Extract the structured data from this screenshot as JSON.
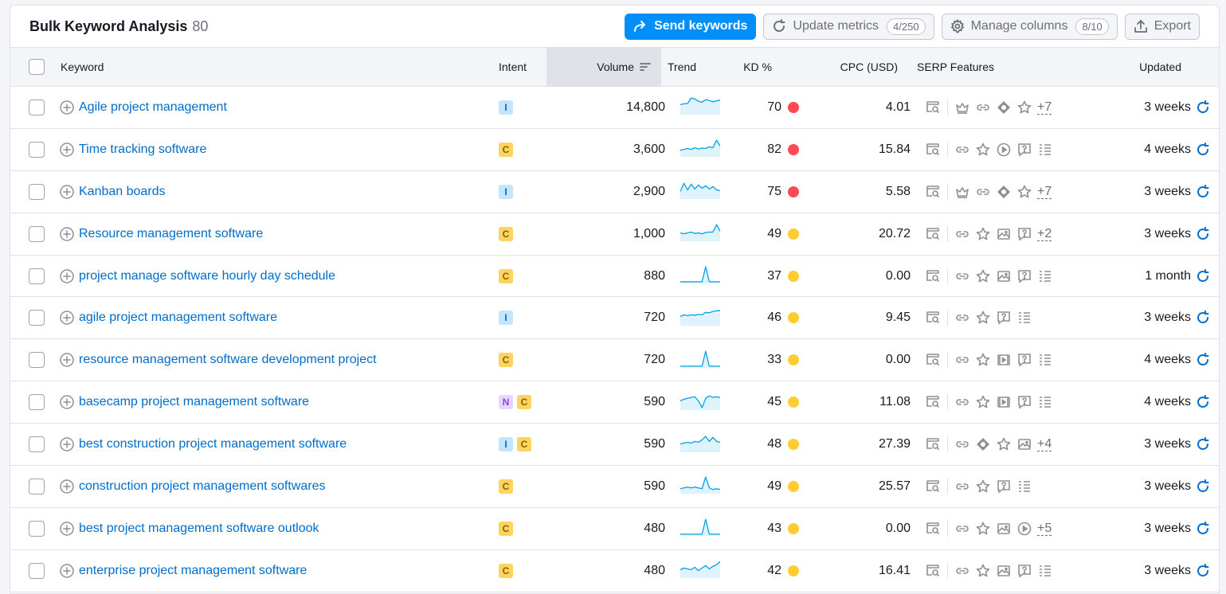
{
  "header": {
    "title": "Bulk Keyword Analysis",
    "count": "80",
    "send_label": "Send keywords",
    "update_label": "Update metrics",
    "update_count": "4/250",
    "manage_label": "Manage columns",
    "manage_count": "8/10",
    "export_label": "Export"
  },
  "columns": {
    "keyword": "Keyword",
    "intent": "Intent",
    "volume": "Volume",
    "trend": "Trend",
    "kd": "KD %",
    "cpc": "CPC (USD)",
    "serp": "SERP Features",
    "updated": "Updated"
  },
  "colors": {
    "accent": "#008ff8",
    "link": "#006dca",
    "kd_high": "#ff4953",
    "kd_mid": "#ffcc33",
    "trend": "#00a1e6"
  },
  "rows": [
    {
      "keyword": "Agile project management",
      "intent": [
        "I"
      ],
      "volume": "14,800",
      "trend": [
        0.55,
        0.6,
        0.62,
        0.95,
        0.9,
        0.75,
        0.7,
        0.85,
        0.8,
        0.72,
        0.78,
        0.82
      ],
      "kd": "70",
      "kd_level": "high",
      "cpc": "4.01",
      "serp": [
        "serp-snapshot",
        "crown",
        "link",
        "diamond",
        "star"
      ],
      "more": "+7",
      "updated": "3 weeks"
    },
    {
      "keyword": "Time tracking software",
      "intent": [
        "C"
      ],
      "volume": "3,600",
      "trend": [
        0.35,
        0.4,
        0.45,
        0.4,
        0.5,
        0.42,
        0.48,
        0.45,
        0.55,
        0.5,
        0.95,
        0.6
      ],
      "kd": "82",
      "kd_level": "high",
      "cpc": "15.84",
      "serp": [
        "serp-snapshot",
        "link",
        "star",
        "play",
        "question",
        "list"
      ],
      "more": "",
      "updated": "4 weeks"
    },
    {
      "keyword": "Kanban boards",
      "intent": [
        "I"
      ],
      "volume": "2,900",
      "trend": [
        0.4,
        0.9,
        0.5,
        0.85,
        0.55,
        0.8,
        0.6,
        0.75,
        0.55,
        0.7,
        0.5,
        0.45
      ],
      "kd": "75",
      "kd_level": "high",
      "cpc": "5.58",
      "serp": [
        "serp-snapshot",
        "crown",
        "link",
        "diamond",
        "star"
      ],
      "more": "+7",
      "updated": "3 weeks"
    },
    {
      "keyword": "Resource management software",
      "intent": [
        "C"
      ],
      "volume": "1,000",
      "trend": [
        0.45,
        0.4,
        0.45,
        0.5,
        0.42,
        0.45,
        0.4,
        0.48,
        0.5,
        0.5,
        0.95,
        0.55
      ],
      "kd": "49",
      "kd_level": "mid",
      "cpc": "20.72",
      "serp": [
        "serp-snapshot",
        "link",
        "star",
        "image",
        "question"
      ],
      "more": "+2",
      "updated": "3 weeks"
    },
    {
      "keyword": "project manage software hourly day schedule",
      "intent": [
        "C"
      ],
      "volume": "880",
      "trend": [
        0.05,
        0.05,
        0.05,
        0.05,
        0.05,
        0.05,
        0.05,
        0.95,
        0.05,
        0.05,
        0.05,
        0.05
      ],
      "kd": "37",
      "kd_level": "mid",
      "cpc": "0.00",
      "serp": [
        "serp-snapshot",
        "link",
        "star",
        "image",
        "question",
        "list"
      ],
      "more": "",
      "updated": "1 month"
    },
    {
      "keyword": "agile project management software",
      "intent": [
        "I"
      ],
      "volume": "720",
      "trend": [
        0.5,
        0.6,
        0.55,
        0.6,
        0.58,
        0.62,
        0.6,
        0.75,
        0.72,
        0.8,
        0.85,
        0.85
      ],
      "kd": "46",
      "kd_level": "mid",
      "cpc": "9.45",
      "serp": [
        "serp-snapshot",
        "link",
        "star",
        "question",
        "list"
      ],
      "more": "",
      "updated": "3 weeks"
    },
    {
      "keyword": "resource management software development project",
      "intent": [
        "C"
      ],
      "volume": "720",
      "trend": [
        0.05,
        0.05,
        0.05,
        0.05,
        0.05,
        0.05,
        0.05,
        0.95,
        0.05,
        0.05,
        0.05,
        0.05
      ],
      "kd": "33",
      "kd_level": "mid",
      "cpc": "0.00",
      "serp": [
        "serp-snapshot",
        "link",
        "star",
        "video",
        "question",
        "list"
      ],
      "more": "",
      "updated": "4 weeks"
    },
    {
      "keyword": "basecamp project management software",
      "intent": [
        "N",
        "C"
      ],
      "volume": "590",
      "trend": [
        0.5,
        0.6,
        0.65,
        0.7,
        0.75,
        0.5,
        0.1,
        0.65,
        0.8,
        0.7,
        0.75,
        0.7
      ],
      "kd": "45",
      "kd_level": "mid",
      "cpc": "11.08",
      "serp": [
        "serp-snapshot",
        "link",
        "star",
        "video",
        "question",
        "list"
      ],
      "more": "",
      "updated": "4 weeks"
    },
    {
      "keyword": "best construction project management software",
      "intent": [
        "I",
        "C"
      ],
      "volume": "590",
      "trend": [
        0.45,
        0.5,
        0.55,
        0.5,
        0.6,
        0.55,
        0.7,
        0.9,
        0.6,
        0.85,
        0.6,
        0.55
      ],
      "kd": "48",
      "kd_level": "mid",
      "cpc": "27.39",
      "serp": [
        "serp-snapshot",
        "link",
        "diamond",
        "star",
        "image"
      ],
      "more": "+4",
      "updated": "3 weeks"
    },
    {
      "keyword": "construction project management softwares",
      "intent": [
        "C"
      ],
      "volume": "590",
      "trend": [
        0.25,
        0.3,
        0.35,
        0.3,
        0.35,
        0.3,
        0.25,
        0.95,
        0.3,
        0.2,
        0.25,
        0.2
      ],
      "kd": "49",
      "kd_level": "mid",
      "cpc": "25.57",
      "serp": [
        "serp-snapshot",
        "link",
        "star",
        "question",
        "list"
      ],
      "more": "",
      "updated": "3 weeks"
    },
    {
      "keyword": "best project management software outlook",
      "intent": [
        "C"
      ],
      "volume": "480",
      "trend": [
        0.05,
        0.05,
        0.05,
        0.05,
        0.05,
        0.05,
        0.05,
        0.95,
        0.05,
        0.05,
        0.05,
        0.05
      ],
      "kd": "43",
      "kd_level": "mid",
      "cpc": "0.00",
      "serp": [
        "serp-snapshot",
        "link",
        "star",
        "image",
        "play"
      ],
      "more": "+5",
      "updated": "3 weeks"
    },
    {
      "keyword": "enterprise project management software",
      "intent": [
        "C"
      ],
      "volume": "480",
      "trend": [
        0.45,
        0.55,
        0.5,
        0.45,
        0.6,
        0.4,
        0.55,
        0.7,
        0.5,
        0.65,
        0.75,
        0.95
      ],
      "kd": "42",
      "kd_level": "mid",
      "cpc": "16.41",
      "serp": [
        "serp-snapshot",
        "link",
        "star",
        "image",
        "question",
        "list"
      ],
      "more": "",
      "updated": "3 weeks"
    }
  ]
}
